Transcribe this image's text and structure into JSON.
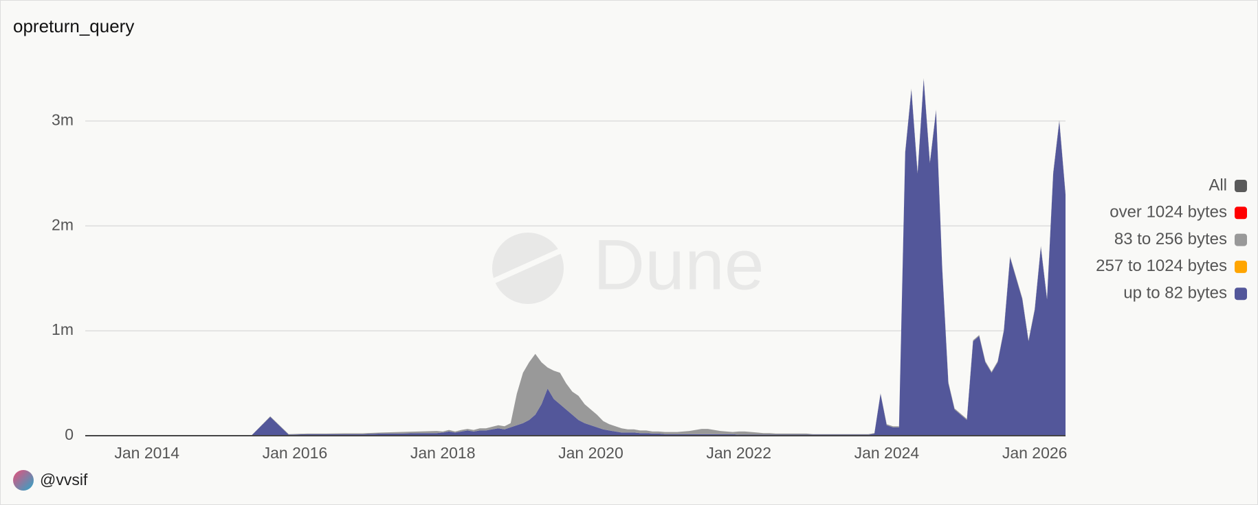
{
  "chart_data": {
    "type": "area",
    "title": "opreturn_query",
    "watermark": "Dune",
    "author": "@vvsif",
    "stacked": true,
    "grid": true,
    "legend": "right",
    "xlim": [
      "2013-03",
      "2026-06"
    ],
    "xticks": [
      {
        "value": "2014-01",
        "label": "Jan 2014"
      },
      {
        "value": "2016-01",
        "label": "Jan 2016"
      },
      {
        "value": "2018-01",
        "label": "Jan 2018"
      },
      {
        "value": "2020-01",
        "label": "Jan 2020"
      },
      {
        "value": "2022-01",
        "label": "Jan 2022"
      },
      {
        "value": "2024-01",
        "label": "Jan 2024"
      },
      {
        "value": "2026-01",
        "label": "Jan 2026"
      }
    ],
    "ylim": [
      0,
      3500000
    ],
    "yticks": [
      0,
      {
        "value": 1000000,
        "label": "1m"
      },
      {
        "value": 2000000,
        "label": "2m"
      },
      {
        "value": 3000000,
        "label": "3m"
      }
    ],
    "x": [
      "2013-03",
      "2013-06",
      "2013-09",
      "2013-12",
      "2014-03",
      "2014-06",
      "2014-09",
      "2014-12",
      "2015-03",
      "2015-06",
      "2015-09",
      "2015-12",
      "2016-03",
      "2016-06",
      "2016-09",
      "2016-12",
      "2017-03",
      "2017-06",
      "2017-09",
      "2017-12",
      "2018-01",
      "2018-02",
      "2018-03",
      "2018-04",
      "2018-05",
      "2018-06",
      "2018-07",
      "2018-08",
      "2018-09",
      "2018-10",
      "2018-11",
      "2018-12",
      "2019-01",
      "2019-02",
      "2019-03",
      "2019-04",
      "2019-05",
      "2019-06",
      "2019-07",
      "2019-08",
      "2019-09",
      "2019-10",
      "2019-11",
      "2019-12",
      "2020-01",
      "2020-02",
      "2020-03",
      "2020-04",
      "2020-05",
      "2020-06",
      "2020-07",
      "2020-08",
      "2020-09",
      "2020-10",
      "2020-11",
      "2020-12",
      "2021-01",
      "2021-02",
      "2021-03",
      "2021-04",
      "2021-05",
      "2021-06",
      "2021-07",
      "2021-08",
      "2021-09",
      "2021-10",
      "2021-11",
      "2021-12",
      "2022-01",
      "2022-02",
      "2022-03",
      "2022-04",
      "2022-05",
      "2022-06",
      "2022-07",
      "2022-08",
      "2022-09",
      "2022-10",
      "2022-11",
      "2022-12",
      "2023-01",
      "2023-02",
      "2023-03",
      "2023-04",
      "2023-05",
      "2023-06",
      "2023-07",
      "2023-08",
      "2023-09",
      "2023-10",
      "2023-11",
      "2023-12",
      "2024-01",
      "2024-02",
      "2024-03",
      "2024-04",
      "2024-05",
      "2024-06",
      "2024-07",
      "2024-08",
      "2024-09",
      "2024-10",
      "2024-11",
      "2024-12",
      "2025-01",
      "2025-02",
      "2025-03",
      "2025-04",
      "2025-05",
      "2025-06",
      "2025-07",
      "2025-08",
      "2025-09",
      "2025-10",
      "2025-11",
      "2025-12",
      "2026-01",
      "2026-02",
      "2026-03",
      "2026-04",
      "2026-05",
      "2026-06"
    ],
    "series": [
      {
        "name": "All",
        "color": "#5a5a5a",
        "values": [
          0,
          0,
          0,
          0,
          0,
          0,
          0,
          0,
          0,
          0,
          0,
          0,
          0,
          0,
          0,
          0,
          0,
          0,
          0,
          0,
          0,
          0,
          0,
          0,
          0,
          0,
          0,
          0,
          0,
          0,
          0,
          0,
          0,
          0,
          0,
          0,
          0,
          0,
          0,
          0,
          0,
          0,
          0,
          0,
          0,
          0,
          0,
          0,
          0,
          0,
          0,
          0,
          0,
          0,
          0,
          0,
          0,
          0,
          0,
          0,
          0,
          0,
          0,
          0,
          0,
          0,
          0,
          0,
          0,
          0,
          0,
          0,
          0,
          0,
          0,
          0,
          0,
          0,
          0,
          0,
          0,
          0,
          0,
          0,
          0,
          0,
          0,
          0,
          0,
          0,
          0,
          0,
          0,
          0,
          0,
          0,
          0,
          0,
          0,
          0,
          0,
          0,
          0,
          0,
          0,
          0,
          0,
          0,
          0,
          0,
          0,
          0,
          0,
          0,
          0,
          0,
          0,
          0,
          0,
          0,
          0,
          0
        ]
      },
      {
        "name": "over 1024 bytes",
        "color": "#ff0000",
        "values": [
          0,
          0,
          0,
          0,
          0,
          0,
          0,
          0,
          0,
          0,
          0,
          0,
          0,
          0,
          0,
          0,
          0,
          0,
          0,
          0,
          0,
          0,
          0,
          0,
          0,
          0,
          0,
          0,
          0,
          0,
          0,
          0,
          0,
          0,
          0,
          0,
          0,
          0,
          0,
          0,
          0,
          0,
          0,
          0,
          0,
          0,
          0,
          0,
          0,
          0,
          0,
          0,
          0,
          0,
          0,
          0,
          0,
          0,
          0,
          0,
          0,
          0,
          0,
          0,
          0,
          0,
          0,
          0,
          0,
          0,
          0,
          0,
          0,
          0,
          0,
          0,
          0,
          0,
          0,
          0,
          0,
          0,
          0,
          0,
          0,
          0,
          0,
          0,
          0,
          0,
          0,
          0,
          0,
          0,
          0,
          0,
          0,
          0,
          0,
          0,
          0,
          0,
          0,
          0,
          0,
          0,
          0,
          0,
          0,
          0,
          0,
          0,
          0,
          0,
          0,
          0,
          0,
          0,
          0,
          0,
          0,
          0
        ]
      },
      {
        "name": "83 to 256 bytes",
        "color": "#999999",
        "values": [
          0,
          0,
          0,
          0,
          0,
          0,
          0,
          0,
          0,
          0,
          5000,
          5000,
          5000,
          5000,
          8000,
          8000,
          10000,
          15000,
          15000,
          20000,
          10000,
          15000,
          10000,
          15000,
          15000,
          15000,
          20000,
          20000,
          25000,
          30000,
          30000,
          40000,
          300000,
          480000,
          550000,
          580000,
          400000,
          200000,
          270000,
          300000,
          250000,
          220000,
          230000,
          180000,
          150000,
          120000,
          80000,
          60000,
          50000,
          40000,
          30000,
          30000,
          25000,
          25000,
          20000,
          20000,
          20000,
          20000,
          20000,
          25000,
          30000,
          40000,
          50000,
          50000,
          40000,
          30000,
          25000,
          20000,
          30000,
          30000,
          25000,
          20000,
          15000,
          15000,
          10000,
          10000,
          10000,
          10000,
          10000,
          10000,
          5000,
          5000,
          5000,
          5000,
          5000,
          5000,
          5000,
          5000,
          5000,
          5000,
          5000,
          5000,
          10000,
          10000,
          10000,
          10000,
          10000,
          10000,
          10000,
          10000,
          10000,
          10000,
          10000,
          10000,
          10000,
          10000,
          10000,
          10000,
          10000,
          10000,
          10000,
          10000,
          10000,
          10000,
          10000,
          10000,
          10000,
          10000,
          10000,
          10000,
          10000,
          10000
        ]
      },
      {
        "name": "257 to 1024 bytes",
        "color": "#ffa500",
        "values": [
          0,
          0,
          0,
          0,
          0,
          0,
          0,
          0,
          0,
          0,
          0,
          0,
          0,
          0,
          0,
          0,
          0,
          0,
          0,
          0,
          0,
          0,
          0,
          0,
          0,
          0,
          0,
          0,
          0,
          0,
          0,
          0,
          0,
          0,
          0,
          0,
          0,
          0,
          0,
          0,
          0,
          0,
          0,
          0,
          0,
          0,
          0,
          0,
          0,
          0,
          0,
          0,
          0,
          0,
          0,
          0,
          0,
          0,
          0,
          0,
          0,
          0,
          0,
          0,
          0,
          0,
          0,
          0,
          0,
          0,
          0,
          0,
          0,
          0,
          0,
          0,
          0,
          0,
          0,
          0,
          0,
          0,
          0,
          0,
          0,
          0,
          0,
          0,
          0,
          0,
          0,
          0,
          0,
          0,
          0,
          0,
          0,
          0,
          0,
          0,
          0,
          0,
          0,
          0,
          0,
          0,
          0,
          0,
          0,
          0,
          0,
          0,
          0,
          0,
          0,
          0,
          0,
          0,
          0,
          0,
          0,
          0
        ]
      },
      {
        "name": "up to 82 bytes",
        "color": "#53579a",
        "values": [
          0,
          0,
          0,
          0,
          3000,
          3000,
          3000,
          3000,
          5000,
          5000,
          180000,
          10000,
          15000,
          15000,
          15000,
          15000,
          20000,
          20000,
          25000,
          25000,
          30000,
          40000,
          30000,
          40000,
          50000,
          40000,
          50000,
          50000,
          60000,
          70000,
          60000,
          80000,
          100000,
          120000,
          150000,
          200000,
          300000,
          450000,
          350000,
          300000,
          250000,
          200000,
          150000,
          120000,
          100000,
          80000,
          60000,
          50000,
          40000,
          30000,
          30000,
          30000,
          25000,
          25000,
          20000,
          20000,
          15000,
          15000,
          15000,
          15000,
          15000,
          15000,
          15000,
          15000,
          15000,
          15000,
          15000,
          15000,
          10000,
          10000,
          10000,
          10000,
          10000,
          10000,
          10000,
          10000,
          10000,
          10000,
          10000,
          10000,
          10000,
          10000,
          10000,
          10000,
          10000,
          10000,
          10000,
          10000,
          10000,
          10000,
          20000,
          400000,
          100000,
          80000,
          80000,
          2700000,
          3300000,
          2500000,
          3400000,
          2600000,
          3100000,
          1600000,
          500000,
          250000,
          200000,
          150000,
          900000,
          950000,
          700000,
          600000,
          700000,
          1000000,
          1700000,
          1500000,
          1300000,
          900000,
          1200000,
          1800000,
          1300000,
          2500000,
          3000000,
          2300000
        ]
      }
    ]
  }
}
